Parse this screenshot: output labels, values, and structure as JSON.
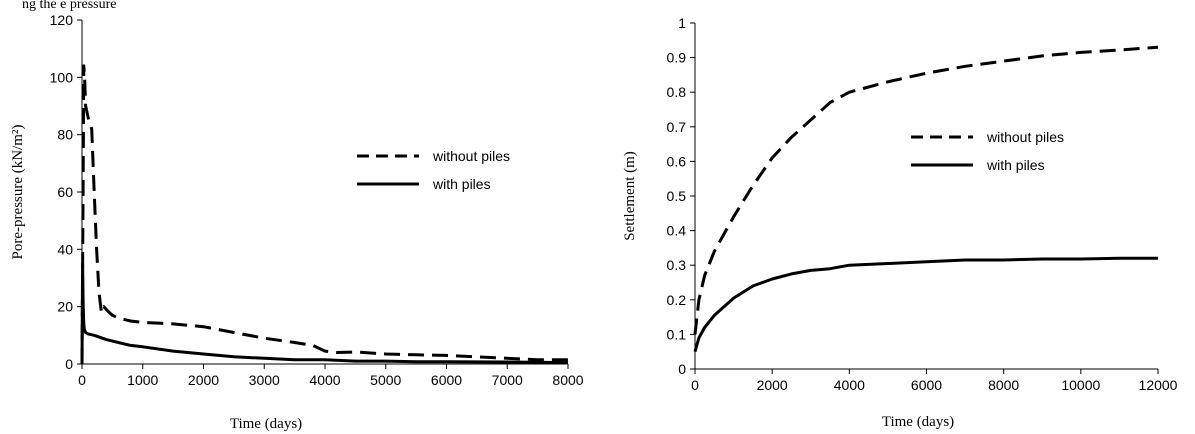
{
  "caption_fragment": "ng the             e pressure",
  "chart_data": [
    {
      "type": "line",
      "title": "",
      "xlabel": "Time (days)",
      "ylabel": "Pore-pressure  (kN/m²)",
      "xlim": [
        0,
        8000
      ],
      "ylim": [
        0,
        120
      ],
      "xticks": [
        0,
        1000,
        2000,
        3000,
        4000,
        5000,
        6000,
        7000,
        8000
      ],
      "yticks": [
        0,
        20,
        40,
        60,
        80,
        100,
        120
      ],
      "grid": false,
      "legend_position": "right-middle",
      "series": [
        {
          "name": "without piles",
          "style": "dashed",
          "x": [
            0,
            15,
            30,
            45,
            60,
            80,
            100,
            130,
            160,
            200,
            240,
            280,
            320,
            360,
            400,
            450,
            500,
            600,
            800,
            1000,
            1500,
            2000,
            2500,
            3000,
            3500,
            3800,
            4000,
            4200,
            4500,
            5000,
            5500,
            6000,
            6500,
            7000,
            7500,
            8000
          ],
          "y": [
            0,
            50,
            104,
            99,
            90,
            88,
            86,
            84,
            82,
            60,
            40,
            25,
            18,
            20,
            19,
            18,
            17,
            16,
            15,
            14.5,
            14,
            13,
            11,
            9,
            7.5,
            6.5,
            4.5,
            4,
            4.2,
            3.5,
            3.2,
            3,
            2.5,
            2,
            1.5,
            1.5
          ]
        },
        {
          "name": "with piles",
          "style": "solid",
          "x": [
            0,
            10,
            20,
            30,
            40,
            60,
            100,
            200,
            400,
            600,
            800,
            1000,
            1500,
            2000,
            2500,
            3000,
            3500,
            4000,
            4500,
            5000,
            5500,
            6000,
            7000,
            8000
          ],
          "y": [
            0,
            35,
            20,
            14,
            12,
            11,
            10.5,
            10,
            8.5,
            7.5,
            6.5,
            6,
            4.5,
            3.5,
            2.5,
            2,
            1.5,
            1.5,
            1,
            1,
            0.8,
            0.8,
            0.7,
            0.5
          ]
        }
      ]
    },
    {
      "type": "line",
      "title": "",
      "xlabel": "Time (days)",
      "ylabel": "Settlement (m)",
      "xlim": [
        0,
        12000
      ],
      "ylim": [
        0,
        1
      ],
      "xticks": [
        0,
        2000,
        4000,
        6000,
        8000,
        10000,
        12000
      ],
      "yticks": [
        0,
        0.1,
        0.2,
        0.3,
        0.4,
        0.5,
        0.6,
        0.7,
        0.8,
        0.9,
        1
      ],
      "ytick_labels": [
        "0",
        "0.1",
        "0.2",
        "0.3",
        "0.4",
        "0.5",
        "0.6",
        "0.7",
        "0.8",
        "0.9",
        "1"
      ],
      "grid": false,
      "legend_position": "right-middle",
      "series": [
        {
          "name": "without piles",
          "style": "dashed",
          "x": [
            0,
            100,
            250,
            500,
            1000,
            1500,
            2000,
            2500,
            3000,
            3500,
            4000,
            4500,
            5000,
            6000,
            7000,
            8000,
            9000,
            10000,
            11000,
            12000
          ],
          "y": [
            0.1,
            0.2,
            0.27,
            0.34,
            0.44,
            0.53,
            0.61,
            0.67,
            0.72,
            0.77,
            0.8,
            0.815,
            0.83,
            0.855,
            0.875,
            0.89,
            0.905,
            0.915,
            0.922,
            0.93
          ]
        },
        {
          "name": "with piles",
          "style": "solid",
          "x": [
            0,
            100,
            250,
            500,
            1000,
            1500,
            2000,
            2500,
            3000,
            3500,
            4000,
            5000,
            6000,
            7000,
            8000,
            9000,
            10000,
            11000,
            12000
          ],
          "y": [
            0.05,
            0.09,
            0.12,
            0.155,
            0.205,
            0.24,
            0.26,
            0.275,
            0.285,
            0.29,
            0.3,
            0.305,
            0.31,
            0.315,
            0.315,
            0.318,
            0.318,
            0.32,
            0.32
          ]
        }
      ]
    }
  ]
}
